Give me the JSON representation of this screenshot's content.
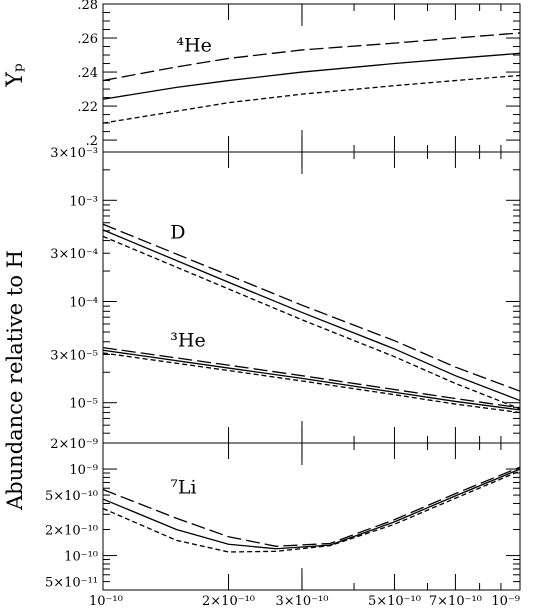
{
  "chart_data": {
    "type": "line",
    "shared_x": {
      "scale": "log",
      "range": [
        1e-10,
        1e-09
      ],
      "tick_labels": [
        {
          "value": 1e-10,
          "label": "10⁻¹⁰"
        },
        {
          "value": 2e-10,
          "label": "2×10⁻¹⁰"
        },
        {
          "value": 3e-10,
          "label": "3×10⁻¹⁰"
        },
        {
          "value": 5e-10,
          "label": "5×10⁻¹⁰"
        },
        {
          "value": 7e-10,
          "label": "7×10⁻¹⁰"
        },
        {
          "value": 1e-09,
          "label": "10⁻⁹"
        }
      ]
    },
    "ylabel_shared": "Abundance relative to H",
    "panels": [
      {
        "id": "helium4",
        "yscale": "linear",
        "ylabel": "Yₚ",
        "ylim": [
          0.193,
          0.28
        ],
        "yticks": [
          {
            "value": 0.28,
            "label": ".28"
          },
          {
            "value": 0.26,
            "label": ".26"
          },
          {
            "value": 0.24,
            "label": ".24"
          },
          {
            "value": 0.22,
            "label": ".22"
          },
          {
            "value": 0.2,
            "label": ".2"
          }
        ],
        "annotation": {
          "label": "⁴He",
          "x": 1.5e-10,
          "y": 0.252
        },
        "series": [
          {
            "style": "dashed",
            "x": [
              1e-10,
              1.5e-10,
              2e-10,
              3e-10,
              5e-10,
              7e-10,
              1e-09
            ],
            "y": [
              0.235,
              0.243,
              0.248,
              0.253,
              0.257,
              0.26,
              0.263
            ]
          },
          {
            "style": "solid",
            "x": [
              1e-10,
              1.5e-10,
              2e-10,
              3e-10,
              5e-10,
              7e-10,
              1e-09
            ],
            "y": [
              0.224,
              0.231,
              0.235,
              0.24,
              0.245,
              0.248,
              0.251
            ]
          },
          {
            "style": "dotted",
            "x": [
              1e-10,
              1.5e-10,
              2e-10,
              3e-10,
              5e-10,
              7e-10,
              1e-09
            ],
            "y": [
              0.21,
              0.217,
              0.222,
              0.227,
              0.232,
              0.235,
              0.238
            ]
          }
        ]
      },
      {
        "id": "deuterium-helium3",
        "yscale": "log",
        "ylim": [
          4e-06,
          0.003
        ],
        "yticks": [
          {
            "value": 0.003,
            "label": "3×10⁻³"
          },
          {
            "value": 0.001,
            "label": "10⁻³"
          },
          {
            "value": 0.0003,
            "label": "3×10⁻⁴"
          },
          {
            "value": 0.0001,
            "label": "10⁻⁴"
          },
          {
            "value": 3e-05,
            "label": "3×10⁻⁵"
          },
          {
            "value": 1e-05,
            "label": "10⁻⁵"
          }
        ],
        "annotations": [
          {
            "label": "D",
            "x": 1.45e-10,
            "y": 0.00042
          },
          {
            "label": "³He",
            "x": 1.45e-10,
            "y": 3.6e-05
          }
        ],
        "series": [
          {
            "group": "D",
            "style": "dashed",
            "x": [
              1e-10,
              2e-10,
              3e-10,
              5e-10,
              7e-10,
              1e-09
            ],
            "y": [
              0.00058,
              0.000182,
              9.2e-05,
              4.1e-05,
              2.25e-05,
              1.3e-05
            ]
          },
          {
            "group": "D",
            "style": "solid",
            "x": [
              1e-10,
              2e-10,
              3e-10,
              5e-10,
              7e-10,
              1e-09
            ],
            "y": [
              0.00051,
              0.000155,
              7.8e-05,
              3.4e-05,
              1.85e-05,
              1.05e-05
            ]
          },
          {
            "group": "D",
            "style": "dotted",
            "x": [
              1e-10,
              2e-10,
              3e-10,
              5e-10,
              7e-10,
              1e-09
            ],
            "y": [
              0.00044,
              0.000133,
              6.6e-05,
              2.85e-05,
              1.55e-05,
              8.7e-06
            ]
          },
          {
            "group": "3He",
            "style": "dashed",
            "x": [
              1e-10,
              2e-10,
              3e-10,
              5e-10,
              7e-10,
              1e-09
            ],
            "y": [
              3.5e-05,
              2.35e-05,
              1.85e-05,
              1.35e-05,
              1.1e-05,
              8.9e-06
            ]
          },
          {
            "group": "3He",
            "style": "solid",
            "x": [
              1e-10,
              2e-10,
              3e-10,
              5e-10,
              7e-10,
              1e-09
            ],
            "y": [
              3.3e-05,
              2.2e-05,
              1.74e-05,
              1.27e-05,
              1.03e-05,
              8.5e-06
            ]
          },
          {
            "group": "3He",
            "style": "dotted",
            "x": [
              1e-10,
              2e-10,
              3e-10,
              5e-10,
              7e-10,
              1e-09
            ],
            "y": [
              3.1e-05,
              2.08e-05,
              1.64e-05,
              1.2e-05,
              9.7e-06,
              8e-06
            ]
          }
        ]
      },
      {
        "id": "lithium7",
        "yscale": "log",
        "ylim": [
          4e-11,
          2e-09
        ],
        "yticks": [
          {
            "value": 2e-09,
            "label": "2×10⁻⁹"
          },
          {
            "value": 1e-09,
            "label": "10⁻⁹"
          },
          {
            "value": 5e-10,
            "label": "5×10⁻¹⁰"
          },
          {
            "value": 2e-10,
            "label": "2×10⁻¹⁰"
          },
          {
            "value": 1e-10,
            "label": "10⁻¹⁰"
          },
          {
            "value": 5e-11,
            "label": "5×10⁻¹¹"
          }
        ],
        "annotation": {
          "label": "⁷Li",
          "x": 1.45e-10,
          "y": 5.2e-10
        },
        "series": [
          {
            "style": "dashed",
            "x": [
              1e-10,
              1.5e-10,
              2e-10,
              2.6e-10,
              3.5e-10,
              5e-10,
              7e-10,
              1e-09
            ],
            "y": [
              5.8e-10,
              2.7e-10,
              1.65e-10,
              1.28e-10,
              1.38e-10,
              2.6e-10,
              5.2e-10,
              1.05e-09
            ]
          },
          {
            "style": "solid",
            "x": [
              1e-10,
              1.5e-10,
              2e-10,
              2.6e-10,
              3.5e-10,
              5e-10,
              7e-10,
              1e-09
            ],
            "y": [
              4.5e-10,
              2e-10,
              1.35e-10,
              1.2e-10,
              1.32e-10,
              2.45e-10,
              4.9e-10,
              1e-09
            ]
          },
          {
            "style": "dotted",
            "x": [
              1e-10,
              1.5e-10,
              2e-10,
              2.6e-10,
              3.5e-10,
              5e-10,
              7e-10,
              1e-09
            ],
            "y": [
              3.5e-10,
              1.5e-10,
              1.1e-10,
              1.12e-10,
              1.3e-10,
              2.3e-10,
              4.6e-10,
              9.5e-10
            ]
          }
        ]
      }
    ]
  }
}
